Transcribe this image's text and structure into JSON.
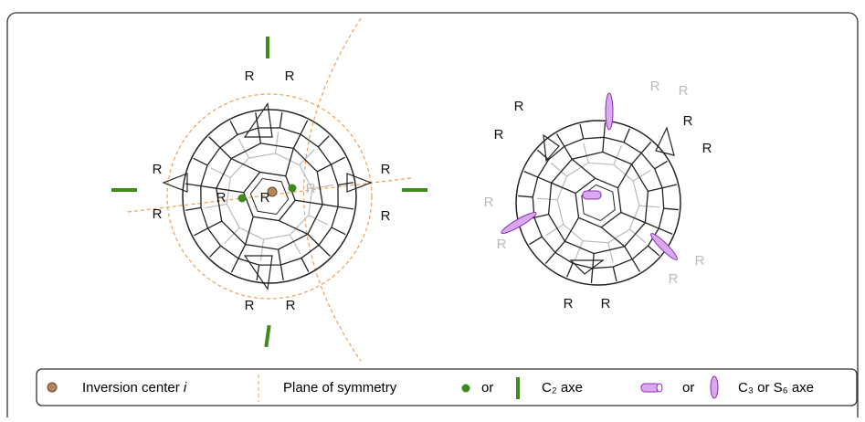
{
  "molecules": {
    "left": {
      "r_labels": [
        "R",
        "R",
        "R",
        "R",
        "R",
        "R",
        "R",
        "R",
        "R",
        "R",
        "R"
      ]
    },
    "right": {
      "r_labels": [
        "R",
        "R",
        "R",
        "R",
        "R",
        "R",
        "R",
        "R",
        "R",
        "R",
        "R",
        "R"
      ]
    }
  },
  "legend": {
    "inversion": {
      "text": "Inversion center",
      "symbol": "i"
    },
    "plane": "Plane of symmetry",
    "or1": "or",
    "c2": "C₂ axe",
    "or2": "or",
    "c3": "C₃ or S₆ axe"
  }
}
